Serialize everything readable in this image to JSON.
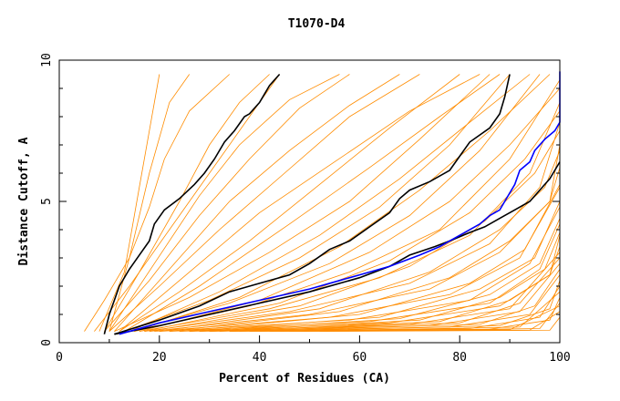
{
  "chart_data": {
    "type": "line",
    "title": "T1070-D4",
    "xlabel": "Percent of Residues (CA)",
    "ylabel": "Distance Cutoff, A",
    "xlim": [
      0,
      100
    ],
    "ylim": [
      0,
      10
    ],
    "xticks": [
      0,
      20,
      40,
      60,
      80,
      100
    ],
    "yticks": [
      0,
      5,
      10
    ],
    "grid": false,
    "legend": "none",
    "colors": {
      "background_series": "#ff8c00",
      "highlight_black": "#000000",
      "highlight_blue": "#0000ff"
    },
    "background_series": {
      "note_count": 48,
      "curves": [
        {
          "x": [
            5,
            9,
            14,
            18,
            21,
            26,
            34
          ],
          "y": [
            0.4,
            1.5,
            3.0,
            4.8,
            6.5,
            8.2,
            9.5
          ]
        },
        {
          "x": [
            8,
            13,
            16,
            19,
            20
          ],
          "y": [
            0.4,
            2.5,
            5.5,
            8.5,
            9.5
          ]
        },
        {
          "x": [
            7,
            14,
            22,
            30,
            38,
            44
          ],
          "y": [
            0.4,
            2.0,
            4.0,
            6.0,
            8.0,
            9.5
          ]
        },
        {
          "x": [
            9,
            18,
            28,
            38,
            48,
            58
          ],
          "y": [
            0.4,
            2.2,
            4.5,
            6.5,
            8.3,
            9.5
          ]
        },
        {
          "x": [
            10,
            20,
            32,
            45,
            58,
            72
          ],
          "y": [
            0.4,
            2.0,
            4.0,
            6.0,
            8.0,
            9.5
          ]
        },
        {
          "x": [
            12,
            24,
            38,
            52,
            66,
            80
          ],
          "y": [
            0.4,
            1.8,
            3.6,
            5.6,
            7.6,
            9.5
          ]
        },
        {
          "x": [
            11,
            26,
            42,
            58,
            72,
            86
          ],
          "y": [
            0.4,
            1.6,
            3.2,
            5.0,
            7.2,
            9.5
          ]
        },
        {
          "x": [
            13,
            30,
            48,
            64,
            78,
            90
          ],
          "y": [
            0.4,
            1.5,
            3.0,
            4.8,
            7.0,
            9.5
          ]
        },
        {
          "x": [
            14,
            34,
            54,
            70,
            84,
            96
          ],
          "y": [
            0.4,
            1.4,
            2.8,
            4.5,
            6.8,
            9.5
          ]
        },
        {
          "x": [
            15,
            38,
            58,
            76,
            90,
            100
          ],
          "y": [
            0.4,
            1.3,
            2.5,
            4.0,
            6.5,
            9.3
          ]
        },
        {
          "x": [
            16,
            42,
            64,
            82,
            94,
            100
          ],
          "y": [
            0.4,
            1.2,
            2.3,
            3.8,
            6.0,
            8.5
          ]
        },
        {
          "x": [
            17,
            46,
            70,
            86,
            96,
            100
          ],
          "y": [
            0.4,
            1.1,
            2.1,
            3.5,
            5.5,
            7.8
          ]
        },
        {
          "x": [
            18,
            50,
            74,
            88,
            98,
            100
          ],
          "y": [
            0.4,
            1.0,
            1.9,
            3.2,
            5.0,
            7.0
          ]
        },
        {
          "x": [
            19,
            54,
            78,
            92,
            100
          ],
          "y": [
            0.4,
            0.9,
            1.7,
            3.0,
            5.5
          ]
        },
        {
          "x": [
            20,
            58,
            82,
            94,
            100
          ],
          "y": [
            0.4,
            0.8,
            1.5,
            2.8,
            4.8
          ]
        },
        {
          "x": [
            22,
            62,
            86,
            96,
            100
          ],
          "y": [
            0.4,
            0.75,
            1.4,
            2.6,
            4.2
          ]
        },
        {
          "x": [
            24,
            66,
            88,
            98,
            100
          ],
          "y": [
            0.4,
            0.7,
            1.3,
            2.4,
            3.8
          ]
        },
        {
          "x": [
            26,
            70,
            90,
            100
          ],
          "y": [
            0.4,
            0.65,
            1.2,
            3.2
          ]
        },
        {
          "x": [
            28,
            74,
            92,
            100
          ],
          "y": [
            0.4,
            0.6,
            1.1,
            2.8
          ]
        },
        {
          "x": [
            30,
            78,
            94,
            100
          ],
          "y": [
            0.4,
            0.55,
            1.0,
            2.4
          ]
        },
        {
          "x": [
            34,
            82,
            96,
            100
          ],
          "y": [
            0.4,
            0.5,
            0.9,
            2.0
          ]
        },
        {
          "x": [
            38,
            86,
            98,
            100
          ],
          "y": [
            0.4,
            0.48,
            0.8,
            1.6
          ]
        },
        {
          "x": [
            42,
            90,
            100
          ],
          "y": [
            0.4,
            0.46,
            1.3
          ]
        },
        {
          "x": [
            46,
            94,
            100
          ],
          "y": [
            0.4,
            0.45,
            1.1
          ]
        },
        {
          "x": [
            52,
            98,
            100
          ],
          "y": [
            0.4,
            0.44,
            0.9
          ]
        },
        {
          "x": [
            9,
            16,
            24,
            30,
            36,
            42
          ],
          "y": [
            0.4,
            2.5,
            5.0,
            7.0,
            8.5,
            9.5
          ]
        },
        {
          "x": [
            10,
            19,
            28,
            36,
            46,
            56
          ],
          "y": [
            0.4,
            2.8,
            5.2,
            7.0,
            8.6,
            9.5
          ]
        },
        {
          "x": [
            11,
            22,
            34,
            46,
            58,
            68
          ],
          "y": [
            0.4,
            2.6,
            5.0,
            6.8,
            8.4,
            9.5
          ]
        },
        {
          "x": [
            12,
            24,
            40,
            55,
            70,
            84
          ],
          "y": [
            0.4,
            2.2,
            4.6,
            6.4,
            8.2,
            9.5
          ]
        },
        {
          "x": [
            13,
            28,
            46,
            62,
            76,
            88
          ],
          "y": [
            0.4,
            2.0,
            4.2,
            6.2,
            8.0,
            9.5
          ]
        },
        {
          "x": [
            14,
            32,
            52,
            68,
            82,
            94
          ],
          "y": [
            0.4,
            1.8,
            3.8,
            5.8,
            7.8,
            9.5
          ]
        },
        {
          "x": [
            15,
            36,
            56,
            72,
            86,
            98
          ],
          "y": [
            0.4,
            1.6,
            3.4,
            5.4,
            7.5,
            9.5
          ]
        },
        {
          "x": [
            16,
            40,
            62,
            78,
            90,
            100
          ],
          "y": [
            0.4,
            1.5,
            3.2,
            5.0,
            7.0,
            9.0
          ]
        },
        {
          "x": [
            17,
            44,
            66,
            82,
            93,
            100
          ],
          "y": [
            0.4,
            1.4,
            2.9,
            4.6,
            6.5,
            8.2
          ]
        },
        {
          "x": [
            18,
            48,
            70,
            85,
            95,
            100
          ],
          "y": [
            0.4,
            1.3,
            2.7,
            4.3,
            6.0,
            7.5
          ]
        },
        {
          "x": [
            20,
            52,
            74,
            88,
            97,
            100
          ],
          "y": [
            0.4,
            1.2,
            2.5,
            4.0,
            5.5,
            6.8
          ]
        },
        {
          "x": [
            22,
            56,
            78,
            90,
            98,
            100
          ],
          "y": [
            0.4,
            1.1,
            2.3,
            3.6,
            5.0,
            6.2
          ]
        },
        {
          "x": [
            24,
            60,
            82,
            93,
            100
          ],
          "y": [
            0.4,
            1.0,
            2.1,
            3.3,
            5.6
          ]
        },
        {
          "x": [
            26,
            64,
            84,
            95,
            100
          ],
          "y": [
            0.4,
            0.9,
            1.9,
            3.0,
            5.0
          ]
        },
        {
          "x": [
            28,
            68,
            86,
            96,
            100
          ],
          "y": [
            0.4,
            0.85,
            1.7,
            2.8,
            4.4
          ]
        },
        {
          "x": [
            30,
            72,
            88,
            97,
            100
          ],
          "y": [
            0.4,
            0.8,
            1.6,
            2.6,
            3.9
          ]
        },
        {
          "x": [
            32,
            76,
            90,
            98,
            100
          ],
          "y": [
            0.4,
            0.75,
            1.5,
            2.4,
            3.4
          ]
        },
        {
          "x": [
            34,
            80,
            92,
            100
          ],
          "y": [
            0.4,
            0.7,
            1.4,
            3.0
          ]
        },
        {
          "x": [
            36,
            84,
            95,
            100
          ],
          "y": [
            0.4,
            0.65,
            1.3,
            2.6
          ]
        },
        {
          "x": [
            40,
            88,
            98,
            100
          ],
          "y": [
            0.4,
            0.6,
            1.2,
            2.2
          ]
        },
        {
          "x": [
            44,
            92,
            100
          ],
          "y": [
            0.4,
            0.55,
            1.8
          ]
        },
        {
          "x": [
            48,
            96,
            100
          ],
          "y": [
            0.4,
            0.5,
            1.4
          ]
        },
        {
          "x": [
            10,
            14,
            18,
            22,
            26
          ],
          "y": [
            0.4,
            3.0,
            6.0,
            8.5,
            9.5
          ]
        }
      ]
    },
    "series": [
      {
        "color": "#000000",
        "x": [
          9,
          10,
          11,
          12,
          14,
          16,
          18,
          19,
          21,
          24,
          27,
          29,
          31,
          33,
          35,
          37,
          38,
          40,
          41,
          42,
          43,
          44
        ],
        "y": [
          0.3,
          1.0,
          1.5,
          2.0,
          2.6,
          3.1,
          3.6,
          4.2,
          4.7,
          5.1,
          5.6,
          6.0,
          6.5,
          7.1,
          7.5,
          8.0,
          8.1,
          8.5,
          8.8,
          9.1,
          9.3,
          9.5
        ]
      },
      {
        "color": "#000000",
        "x": [
          11,
          20,
          28,
          34,
          40,
          46,
          50,
          54,
          58,
          62,
          66,
          68,
          70,
          74,
          78,
          80,
          82,
          86,
          88,
          89,
          90
        ],
        "y": [
          0.3,
          0.8,
          1.3,
          1.8,
          2.1,
          2.4,
          2.8,
          3.3,
          3.6,
          4.1,
          4.6,
          5.1,
          5.4,
          5.7,
          6.1,
          6.6,
          7.1,
          7.6,
          8.1,
          8.7,
          9.5
        ]
      },
      {
        "color": "#000000",
        "x": [
          11,
          20,
          30,
          40,
          50,
          60,
          66,
          70,
          75,
          78,
          82,
          85,
          88,
          91,
          94,
          96,
          98,
          99,
          100
        ],
        "y": [
          0.3,
          0.6,
          1.0,
          1.4,
          1.8,
          2.3,
          2.7,
          3.1,
          3.4,
          3.6,
          3.9,
          4.1,
          4.4,
          4.7,
          5.0,
          5.4,
          5.8,
          6.1,
          6.4
        ]
      },
      {
        "color": "#0000ff",
        "x": [
          12,
          20,
          30,
          40,
          50,
          56,
          60,
          66,
          72,
          76,
          80,
          84,
          86,
          88,
          89,
          90,
          91,
          92,
          94,
          95,
          97,
          99,
          100,
          100
        ],
        "y": [
          0.3,
          0.7,
          1.1,
          1.5,
          1.9,
          2.2,
          2.4,
          2.7,
          3.1,
          3.4,
          3.8,
          4.2,
          4.5,
          4.7,
          5.0,
          5.3,
          5.6,
          6.1,
          6.4,
          6.8,
          7.2,
          7.5,
          7.8,
          9.6
        ]
      }
    ]
  }
}
